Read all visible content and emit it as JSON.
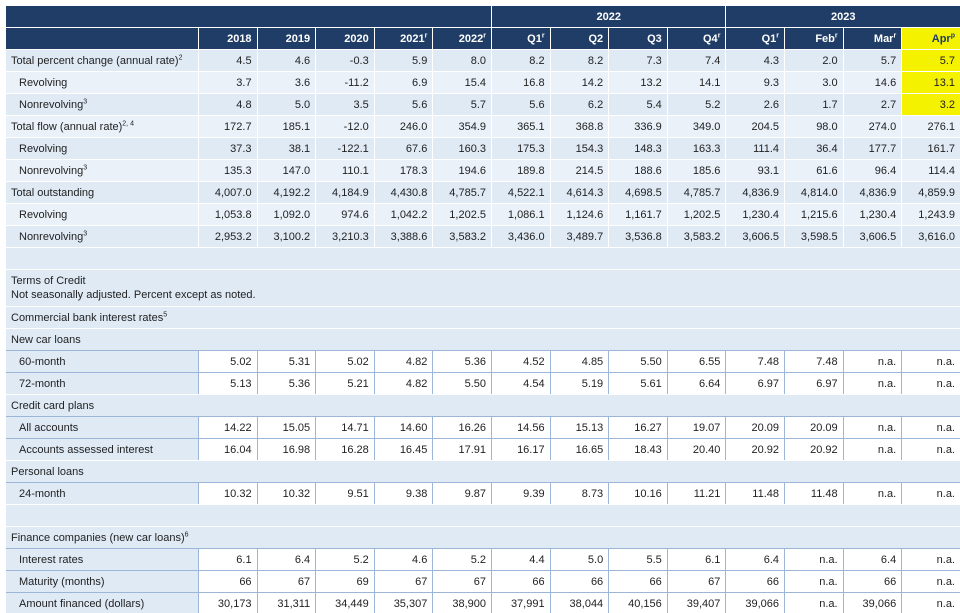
{
  "header": {
    "group_2022": "2022",
    "group_2023": "2023",
    "columns": [
      {
        "label": "2018",
        "sup": ""
      },
      {
        "label": "2019",
        "sup": ""
      },
      {
        "label": "2020",
        "sup": ""
      },
      {
        "label": "2021",
        "sup": "r"
      },
      {
        "label": "2022",
        "sup": "r"
      },
      {
        "label": "Q1",
        "sup": "r"
      },
      {
        "label": "Q2",
        "sup": ""
      },
      {
        "label": "Q3",
        "sup": ""
      },
      {
        "label": "Q4",
        "sup": "r"
      },
      {
        "label": "Q1",
        "sup": "r"
      },
      {
        "label": "Feb",
        "sup": "r"
      },
      {
        "label": "Mar",
        "sup": "r"
      },
      {
        "label": "Apr",
        "sup": "p"
      }
    ]
  },
  "top_rows": [
    {
      "label": "Total percent change (annual rate)",
      "sup": "2",
      "indent": false,
      "values": [
        "4.5",
        "4.6",
        "-0.3",
        "5.9",
        "8.0",
        "8.2",
        "8.2",
        "7.3",
        "7.4",
        "4.3",
        "2.0",
        "5.7",
        "5.7"
      ]
    },
    {
      "label": "Revolving",
      "sup": "",
      "indent": true,
      "values": [
        "3.7",
        "3.6",
        "-11.2",
        "6.9",
        "15.4",
        "16.8",
        "14.2",
        "13.2",
        "14.1",
        "9.3",
        "3.0",
        "14.6",
        "13.1"
      ]
    },
    {
      "label": "Nonrevolving",
      "sup": "3",
      "indent": true,
      "values": [
        "4.8",
        "5.0",
        "3.5",
        "5.6",
        "5.7",
        "5.6",
        "6.2",
        "5.4",
        "5.2",
        "2.6",
        "1.7",
        "2.7",
        "3.2"
      ]
    },
    {
      "label": "Total flow (annual rate)",
      "sup": "2, 4",
      "indent": false,
      "values": [
        "172.7",
        "185.1",
        "-12.0",
        "246.0",
        "354.9",
        "365.1",
        "368.8",
        "336.9",
        "349.0",
        "204.5",
        "98.0",
        "274.0",
        "276.1"
      ]
    },
    {
      "label": "Revolving",
      "sup": "",
      "indent": true,
      "values": [
        "37.3",
        "38.1",
        "-122.1",
        "67.6",
        "160.3",
        "175.3",
        "154.3",
        "148.3",
        "163.3",
        "111.4",
        "36.4",
        "177.7",
        "161.7"
      ]
    },
    {
      "label": "Nonrevolving",
      "sup": "3",
      "indent": true,
      "values": [
        "135.3",
        "147.0",
        "110.1",
        "178.3",
        "194.6",
        "189.8",
        "214.5",
        "188.6",
        "185.6",
        "93.1",
        "61.6",
        "96.4",
        "114.4"
      ]
    },
    {
      "label": "Total outstanding",
      "sup": "",
      "indent": false,
      "values": [
        "4,007.0",
        "4,192.2",
        "4,184.9",
        "4,430.8",
        "4,785.7",
        "4,522.1",
        "4,614.3",
        "4,698.5",
        "4,785.7",
        "4,836.9",
        "4,814.0",
        "4,836.9",
        "4,859.9"
      ]
    },
    {
      "label": "Revolving",
      "sup": "",
      "indent": true,
      "values": [
        "1,053.8",
        "1,092.0",
        "974.6",
        "1,042.2",
        "1,202.5",
        "1,086.1",
        "1,124.6",
        "1,161.7",
        "1,202.5",
        "1,230.4",
        "1,215.6",
        "1,230.4",
        "1,243.9"
      ]
    },
    {
      "label": "Nonrevolving",
      "sup": "3",
      "indent": true,
      "values": [
        "2,953.2",
        "3,100.2",
        "3,210.3",
        "3,388.6",
        "3,583.2",
        "3,436.0",
        "3,489.7",
        "3,536.8",
        "3,583.2",
        "3,606.5",
        "3,598.5",
        "3,606.5",
        "3,616.0"
      ]
    }
  ],
  "terms": {
    "title": "Terms of Credit",
    "note": "Not seasonally adjusted. Percent except as noted."
  },
  "bank": {
    "title": "Commercial bank interest rates",
    "sup": "5",
    "new_car_title": "New car loans",
    "new_car": [
      {
        "label": "60-month",
        "values": [
          "5.02",
          "5.31",
          "5.02",
          "4.82",
          "5.36",
          "4.52",
          "4.85",
          "5.50",
          "6.55",
          "7.48",
          "7.48",
          "n.a.",
          "n.a."
        ]
      },
      {
        "label": "72-month",
        "values": [
          "5.13",
          "5.36",
          "5.21",
          "4.82",
          "5.50",
          "4.54",
          "5.19",
          "5.61",
          "6.64",
          "6.97",
          "6.97",
          "n.a.",
          "n.a."
        ]
      }
    ],
    "credit_card_title": "Credit card plans",
    "credit_card": [
      {
        "label": "All accounts",
        "values": [
          "14.22",
          "15.05",
          "14.71",
          "14.60",
          "16.26",
          "14.56",
          "15.13",
          "16.27",
          "19.07",
          "20.09",
          "20.09",
          "n.a.",
          "n.a."
        ]
      },
      {
        "label": "Accounts assessed interest",
        "values": [
          "16.04",
          "16.98",
          "16.28",
          "16.45",
          "17.91",
          "16.17",
          "16.65",
          "18.43",
          "20.40",
          "20.92",
          "20.92",
          "n.a.",
          "n.a."
        ]
      }
    ],
    "personal_title": "Personal loans",
    "personal": [
      {
        "label": "24-month",
        "values": [
          "10.32",
          "10.32",
          "9.51",
          "9.38",
          "9.87",
          "9.39",
          "8.73",
          "10.16",
          "11.21",
          "11.48",
          "11.48",
          "n.a.",
          "n.a."
        ]
      }
    ]
  },
  "finance": {
    "title": "Finance companies (new car loans)",
    "sup": "6",
    "rows": [
      {
        "label": "Interest rates",
        "values": [
          "6.1",
          "6.4",
          "5.2",
          "4.6",
          "5.2",
          "4.4",
          "5.0",
          "5.5",
          "6.1",
          "6.4",
          "n.a.",
          "6.4",
          "n.a."
        ]
      },
      {
        "label": "Maturity (months)",
        "values": [
          "66",
          "67",
          "69",
          "67",
          "67",
          "66",
          "66",
          "66",
          "67",
          "66",
          "n.a.",
          "66",
          "n.a."
        ]
      },
      {
        "label": "Amount financed (dollars)",
        "values": [
          "30,173",
          "31,311",
          "34,449",
          "35,307",
          "38,900",
          "37,991",
          "38,044",
          "40,156",
          "39,407",
          "39,066",
          "n.a.",
          "39,066",
          "n.a."
        ]
      }
    ]
  },
  "colors": {
    "header_bg": "#1f3d66",
    "highlight": "#f5f200",
    "row_bg": "#dfeaf5"
  }
}
